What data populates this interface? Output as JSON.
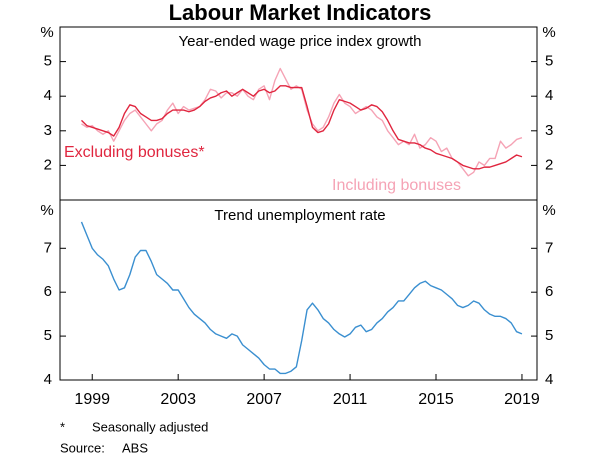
{
  "title": "Labour Market Indicators",
  "chart_data": [
    {
      "type": "line",
      "title": "Year-ended wage price index growth",
      "y_unit": "%",
      "x": [
        1998.5,
        1998.75,
        1999,
        1999.25,
        1999.5,
        1999.75,
        2000,
        2000.25,
        2000.5,
        2000.75,
        2001,
        2001.25,
        2001.5,
        2001.75,
        2002,
        2002.25,
        2002.5,
        2002.75,
        2003,
        2003.25,
        2003.5,
        2003.75,
        2004,
        2004.25,
        2004.5,
        2004.75,
        2005,
        2005.25,
        2005.5,
        2005.75,
        2006,
        2006.25,
        2006.5,
        2006.75,
        2007,
        2007.25,
        2007.5,
        2007.75,
        2008,
        2008.25,
        2008.5,
        2008.75,
        2009,
        2009.25,
        2009.5,
        2009.75,
        2010,
        2010.25,
        2010.5,
        2010.75,
        2011,
        2011.25,
        2011.5,
        2011.75,
        2012,
        2012.25,
        2012.5,
        2012.75,
        2013,
        2013.25,
        2013.5,
        2013.75,
        2014,
        2014.25,
        2014.5,
        2014.75,
        2015,
        2015.25,
        2015.5,
        2015.75,
        2016,
        2016.25,
        2016.5,
        2016.75,
        2017,
        2017.25,
        2017.5,
        2017.75,
        2018,
        2018.25,
        2018.5,
        2018.75,
        2019
      ],
      "series": [
        {
          "name": "Including bonuses",
          "color": "#f5a3b5",
          "values": [
            3.2,
            3.1,
            3.15,
            3.0,
            2.9,
            3.0,
            2.7,
            3.0,
            3.3,
            3.5,
            3.6,
            3.4,
            3.2,
            3.0,
            3.2,
            3.3,
            3.6,
            3.8,
            3.5,
            3.7,
            3.6,
            3.65,
            3.7,
            3.9,
            4.2,
            4.15,
            3.95,
            4.1,
            4.1,
            4.0,
            4.2,
            4.0,
            3.9,
            4.2,
            4.3,
            3.9,
            4.45,
            4.8,
            4.5,
            4.2,
            4.3,
            4.2,
            3.6,
            3.2,
            3.0,
            3.1,
            3.4,
            3.8,
            4.05,
            3.8,
            3.7,
            3.5,
            3.6,
            3.7,
            3.6,
            3.4,
            3.3,
            3.0,
            2.8,
            2.6,
            2.7,
            2.6,
            2.9,
            2.5,
            2.6,
            2.8,
            2.7,
            2.4,
            2.5,
            2.2,
            2.1,
            1.9,
            1.7,
            1.8,
            2.1,
            2.0,
            2.2,
            2.2,
            2.7,
            2.5,
            2.6,
            2.75,
            2.8
          ]
        },
        {
          "name": "Excluding bonuses*",
          "color": "#e0263f",
          "values": [
            3.3,
            3.15,
            3.1,
            3.05,
            3.0,
            2.95,
            2.85,
            3.1,
            3.5,
            3.75,
            3.7,
            3.5,
            3.4,
            3.3,
            3.3,
            3.35,
            3.5,
            3.6,
            3.6,
            3.6,
            3.55,
            3.6,
            3.7,
            3.85,
            3.95,
            4.0,
            4.1,
            4.15,
            4.0,
            4.1,
            4.2,
            4.1,
            4.0,
            4.15,
            4.2,
            4.1,
            4.15,
            4.3,
            4.3,
            4.25,
            4.25,
            4.25,
            3.7,
            3.1,
            2.95,
            3.0,
            3.2,
            3.6,
            3.9,
            3.85,
            3.8,
            3.7,
            3.6,
            3.65,
            3.75,
            3.7,
            3.55,
            3.3,
            3.0,
            2.75,
            2.7,
            2.65,
            2.65,
            2.6,
            2.5,
            2.45,
            2.35,
            2.3,
            2.25,
            2.2,
            2.1,
            2.0,
            1.95,
            1.9,
            1.9,
            1.95,
            1.95,
            2.0,
            2.05,
            2.1,
            2.2,
            2.3,
            2.25
          ]
        }
      ],
      "xlim": [
        1997.5,
        2019.7
      ],
      "ylim": [
        1,
        6
      ],
      "yticks": [
        2,
        3,
        4,
        5
      ]
    },
    {
      "type": "line",
      "title": "Trend unemployment rate",
      "y_unit": "%",
      "x": [
        1998.5,
        1998.75,
        1999,
        1999.25,
        1999.5,
        1999.75,
        2000,
        2000.25,
        2000.5,
        2000.75,
        2001,
        2001.25,
        2001.5,
        2001.75,
        2002,
        2002.25,
        2002.5,
        2002.75,
        2003,
        2003.25,
        2003.5,
        2003.75,
        2004,
        2004.25,
        2004.5,
        2004.75,
        2005,
        2005.25,
        2005.5,
        2005.75,
        2006,
        2006.25,
        2006.5,
        2006.75,
        2007,
        2007.25,
        2007.5,
        2007.75,
        2008,
        2008.25,
        2008.5,
        2008.75,
        2009,
        2009.25,
        2009.5,
        2009.75,
        2010,
        2010.25,
        2010.5,
        2010.75,
        2011,
        2011.25,
        2011.5,
        2011.75,
        2012,
        2012.25,
        2012.5,
        2012.75,
        2013,
        2013.25,
        2013.5,
        2013.75,
        2014,
        2014.25,
        2014.5,
        2014.75,
        2015,
        2015.25,
        2015.5,
        2015.75,
        2016,
        2016.25,
        2016.5,
        2016.75,
        2017,
        2017.25,
        2017.5,
        2017.75,
        2018,
        2018.25,
        2018.5,
        2018.75,
        2019
      ],
      "series": [
        {
          "color": "#3a8fd0",
          "values": [
            7.6,
            7.3,
            7.0,
            6.85,
            6.75,
            6.6,
            6.3,
            6.05,
            6.1,
            6.4,
            6.8,
            6.95,
            6.95,
            6.7,
            6.4,
            6.3,
            6.2,
            6.05,
            6.05,
            5.85,
            5.65,
            5.5,
            5.4,
            5.3,
            5.15,
            5.05,
            5.0,
            4.95,
            5.05,
            5.0,
            4.8,
            4.7,
            4.6,
            4.5,
            4.35,
            4.25,
            4.25,
            4.15,
            4.15,
            4.2,
            4.3,
            4.9,
            5.6,
            5.75,
            5.6,
            5.4,
            5.3,
            5.15,
            5.05,
            4.98,
            5.05,
            5.2,
            5.25,
            5.1,
            5.15,
            5.3,
            5.4,
            5.55,
            5.65,
            5.8,
            5.8,
            5.95,
            6.1,
            6.2,
            6.25,
            6.15,
            6.1,
            6.05,
            5.95,
            5.85,
            5.7,
            5.65,
            5.7,
            5.8,
            5.75,
            5.6,
            5.5,
            5.45,
            5.45,
            5.4,
            5.3,
            5.1,
            5.05
          ]
        }
      ],
      "xlim": [
        1997.5,
        2019.7
      ],
      "ylim": [
        4,
        8.1
      ],
      "yticks": [
        4,
        5,
        6,
        7
      ],
      "xticks": [
        1999,
        2003,
        2007,
        2011,
        2015,
        2019
      ]
    }
  ],
  "notes": [
    {
      "symbol": "*",
      "text": "Seasonally adjusted"
    }
  ],
  "source": {
    "label": "Source:",
    "text": "ABS"
  }
}
